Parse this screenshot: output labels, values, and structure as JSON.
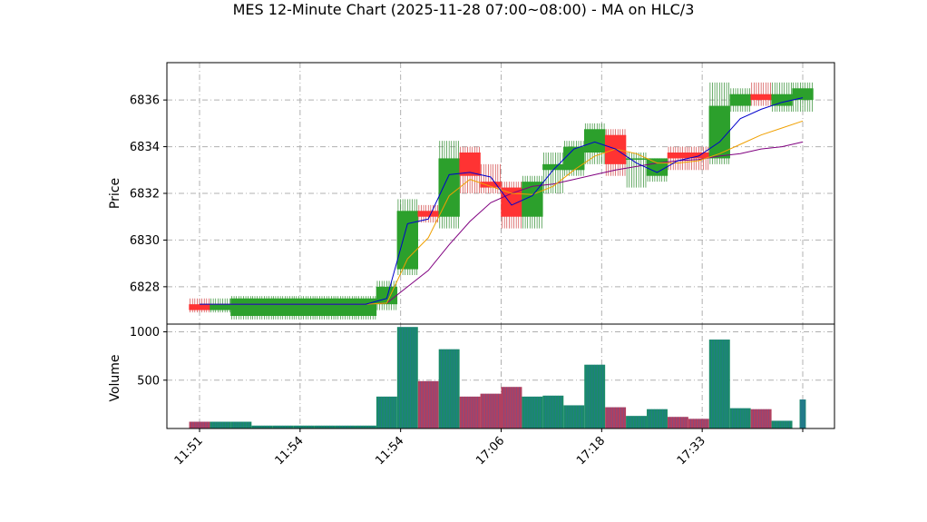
{
  "chart_data": {
    "type": "candlestick",
    "title": "MES 12-Minute Chart (2025-11-28 07:00~08:00) - MA on HLC/3",
    "x_tick_labels": [
      "11:51",
      "11:54",
      "11:54",
      "17:06",
      "17:18",
      "17:33"
    ],
    "price_panel": {
      "ylabel": "Price",
      "ylim": [
        6826.4,
        6837.6
      ],
      "yticks": [
        6828,
        6830,
        6832,
        6834,
        6836
      ],
      "grid": true,
      "candles": [
        {
          "open": 6827.25,
          "high": 6827.5,
          "low": 6826.9,
          "close": 6827.0
        },
        {
          "open": 6827.0,
          "high": 6827.5,
          "low": 6826.9,
          "close": 6827.25
        },
        {
          "open": 6826.75,
          "high": 6827.6,
          "low": 6826.6,
          "close": 6827.5
        },
        {
          "open": 6826.75,
          "high": 6827.6,
          "low": 6826.6,
          "close": 6827.5
        },
        {
          "open": 6826.75,
          "high": 6827.6,
          "low": 6826.6,
          "close": 6827.5
        },
        {
          "open": 6826.75,
          "high": 6827.6,
          "low": 6826.6,
          "close": 6827.5
        },
        {
          "open": 6826.75,
          "high": 6827.6,
          "low": 6826.6,
          "close": 6827.5
        },
        {
          "open": 6826.75,
          "high": 6827.6,
          "low": 6826.6,
          "close": 6827.5
        },
        {
          "open": 6826.75,
          "high": 6827.6,
          "low": 6826.6,
          "close": 6827.5
        },
        {
          "open": 6827.25,
          "high": 6828.25,
          "low": 6827.0,
          "close": 6828.0
        },
        {
          "open": 6828.75,
          "high": 6831.75,
          "low": 6828.5,
          "close": 6831.25
        },
        {
          "open": 6831.25,
          "high": 6831.5,
          "low": 6830.75,
          "close": 6831.0
        },
        {
          "open": 6831.0,
          "high": 6834.25,
          "low": 6830.5,
          "close": 6833.5
        },
        {
          "open": 6833.75,
          "high": 6834.0,
          "low": 6832.0,
          "close": 6832.75
        },
        {
          "open": 6832.5,
          "high": 6833.25,
          "low": 6832.0,
          "close": 6832.25
        },
        {
          "open": 6832.25,
          "high": 6832.5,
          "low": 6830.5,
          "close": 6831.0
        },
        {
          "open": 6831.0,
          "high": 6832.75,
          "low": 6830.5,
          "close": 6832.5
        },
        {
          "open": 6833.0,
          "high": 6833.75,
          "low": 6832.0,
          "close": 6833.25
        },
        {
          "open": 6833.0,
          "high": 6834.25,
          "low": 6832.75,
          "close": 6834.0
        },
        {
          "open": 6833.75,
          "high": 6835.0,
          "low": 6833.25,
          "close": 6834.75
        },
        {
          "open": 6834.5,
          "high": 6834.75,
          "low": 6832.75,
          "close": 6833.25
        },
        {
          "open": 6833.5,
          "high": 6833.75,
          "low": 6832.25,
          "close": 6833.5
        },
        {
          "open": 6832.75,
          "high": 6833.5,
          "low": 6832.5,
          "close": 6833.5
        },
        {
          "open": 6833.75,
          "high": 6834.0,
          "low": 6833.0,
          "close": 6833.5
        },
        {
          "open": 6833.75,
          "high": 6834.0,
          "low": 6833.0,
          "close": 6833.5
        },
        {
          "open": 6833.5,
          "high": 6836.75,
          "low": 6833.25,
          "close": 6835.75
        },
        {
          "open": 6835.75,
          "high": 6836.5,
          "low": 6835.5,
          "close": 6836.25
        },
        {
          "open": 6836.25,
          "high": 6836.75,
          "low": 6835.75,
          "close": 6836.0
        },
        {
          "open": 6835.75,
          "high": 6836.75,
          "low": 6835.5,
          "close": 6836.25
        },
        {
          "open": 6836.0,
          "high": 6836.75,
          "low": 6835.5,
          "close": 6836.5
        }
      ],
      "ma_fast": [
        6827.25,
        6827.25,
        6827.25,
        6827.25,
        6827.25,
        6827.25,
        6827.25,
        6827.25,
        6827.25,
        6827.5,
        6830.7,
        6830.9,
        6832.8,
        6832.9,
        6832.7,
        6831.5,
        6831.9,
        6833.0,
        6833.9,
        6834.2,
        6833.9,
        6833.3,
        6832.9,
        6833.4,
        6833.6,
        6834.2,
        6835.2,
        6835.6,
        6835.9,
        6836.1
      ],
      "ma_medium": [
        6827.25,
        6827.25,
        6827.25,
        6827.25,
        6827.25,
        6827.25,
        6827.25,
        6827.25,
        6827.25,
        6827.3,
        6829.2,
        6830.1,
        6831.9,
        6832.6,
        6832.3,
        6832.0,
        6831.95,
        6832.3,
        6833.0,
        6833.6,
        6833.9,
        6833.7,
        6833.3,
        6833.3,
        6833.4,
        6833.7,
        6834.1,
        6834.5,
        6834.8,
        6835.1
      ],
      "ma_slow": [
        6827.25,
        6827.25,
        6827.25,
        6827.25,
        6827.25,
        6827.25,
        6827.25,
        6827.25,
        6827.25,
        6827.3,
        6828.0,
        6828.7,
        6829.8,
        6830.8,
        6831.6,
        6832.0,
        6832.3,
        6832.4,
        6832.6,
        6832.8,
        6833.0,
        6833.15,
        6833.3,
        6833.4,
        6833.45,
        6833.6,
        6833.7,
        6833.9,
        6834.0,
        6834.2
      ]
    },
    "volume_panel": {
      "ylabel": "Volume",
      "ylim": [
        0,
        1080
      ],
      "yticks": [
        500,
        1000
      ],
      "grid": true,
      "volumes": [
        70,
        70,
        70,
        30,
        30,
        30,
        30,
        30,
        30,
        330,
        1050,
        490,
        820,
        330,
        360,
        430,
        330,
        340,
        240,
        660,
        220,
        130,
        200,
        120,
        100,
        920,
        210,
        200,
        80,
        300
      ]
    },
    "colors": {
      "up": "#2ca02c",
      "down": "#ff3333",
      "wick_up": "#2e8b2e",
      "wick_down": "#d04040",
      "ma_fast": "#0000cc",
      "ma_medium": "#f0a000",
      "ma_slow": "#800080",
      "volume_up": "#1a8a6a",
      "volume_down": "#b04060",
      "grid": "#b0b0b0"
    }
  }
}
